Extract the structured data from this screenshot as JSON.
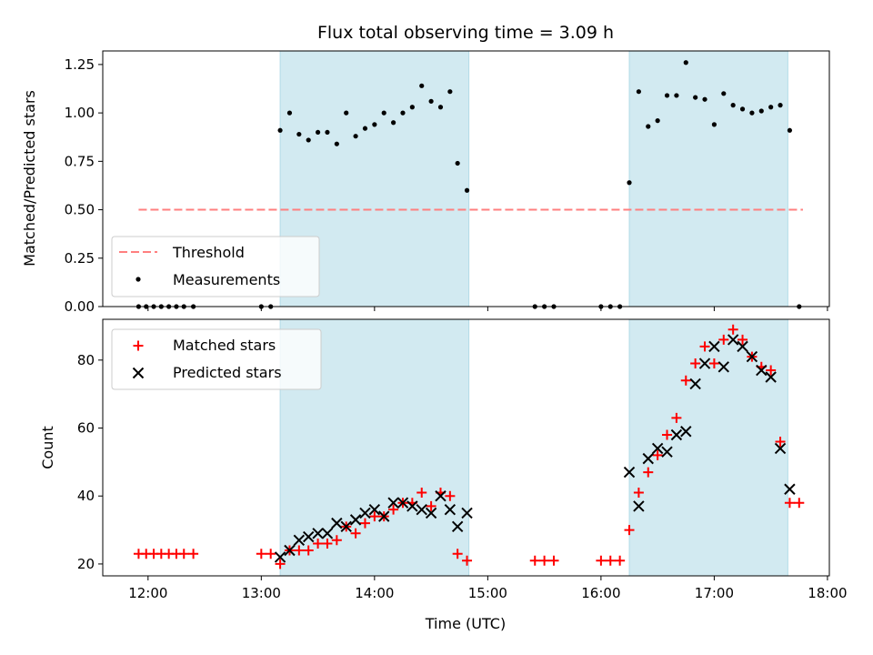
{
  "title": "Flux total observing time = 3.09 h",
  "shading": {
    "color": "#add8e6",
    "intervals": [
      [
        "13:10",
        "14:50"
      ],
      [
        "16:15",
        "17:39"
      ]
    ]
  },
  "chart_data": [
    {
      "type": "scatter",
      "panel": "top",
      "ylabel": "Matched/Predicted stars",
      "xlabel": "",
      "xlim": [
        "11:36",
        "18:01"
      ],
      "ylim": [
        0,
        1.32
      ],
      "yticks": [
        0.0,
        0.25,
        0.5,
        0.75,
        1.0,
        1.25
      ],
      "ytick_labels": [
        "0.00",
        "0.25",
        "0.50",
        "0.75",
        "1.00",
        "1.25"
      ],
      "legend_position": "lower-left",
      "threshold": {
        "name": "Threshold",
        "value": 0.5,
        "x_range": [
          "11:55",
          "17:47"
        ],
        "color": "#ff7f7f",
        "style": "dashed"
      },
      "series": [
        {
          "name": "Measurements",
          "marker": "dot",
          "color": "#000000",
          "points": [
            [
              "11:55",
              0
            ],
            [
              "11:59",
              0
            ],
            [
              "12:03",
              0
            ],
            [
              "12:07",
              0
            ],
            [
              "12:11",
              0
            ],
            [
              "12:15",
              0
            ],
            [
              "12:19",
              0
            ],
            [
              "12:24",
              0
            ],
            [
              "13:00",
              0
            ],
            [
              "13:05",
              0
            ],
            [
              "13:10",
              0.91
            ],
            [
              "13:15",
              1.0
            ],
            [
              "13:20",
              0.89
            ],
            [
              "13:25",
              0.86
            ],
            [
              "13:30",
              0.9
            ],
            [
              "13:35",
              0.9
            ],
            [
              "13:40",
              0.84
            ],
            [
              "13:45",
              1.0
            ],
            [
              "13:50",
              0.88
            ],
            [
              "13:55",
              0.92
            ],
            [
              "14:00",
              0.94
            ],
            [
              "14:05",
              1.0
            ],
            [
              "14:10",
              0.95
            ],
            [
              "14:15",
              1.0
            ],
            [
              "14:20",
              1.03
            ],
            [
              "14:25",
              1.14
            ],
            [
              "14:30",
              1.06
            ],
            [
              "14:35",
              1.03
            ],
            [
              "14:40",
              1.11
            ],
            [
              "14:44",
              0.74
            ],
            [
              "14:49",
              0.6
            ],
            [
              "15:25",
              0
            ],
            [
              "15:30",
              0
            ],
            [
              "15:35",
              0
            ],
            [
              "16:00",
              0
            ],
            [
              "16:05",
              0
            ],
            [
              "16:10",
              0
            ],
            [
              "16:15",
              0.64
            ],
            [
              "16:20",
              1.11
            ],
            [
              "16:25",
              0.93
            ],
            [
              "16:30",
              0.96
            ],
            [
              "16:35",
              1.09
            ],
            [
              "16:40",
              1.09
            ],
            [
              "16:45",
              1.26
            ],
            [
              "16:50",
              1.08
            ],
            [
              "16:55",
              1.07
            ],
            [
              "17:00",
              0.94
            ],
            [
              "17:05",
              1.1
            ],
            [
              "17:10",
              1.04
            ],
            [
              "17:15",
              1.02
            ],
            [
              "17:20",
              1.0
            ],
            [
              "17:25",
              1.01
            ],
            [
              "17:30",
              1.03
            ],
            [
              "17:35",
              1.04
            ],
            [
              "17:40",
              0.91
            ],
            [
              "17:45",
              0
            ]
          ]
        }
      ]
    },
    {
      "type": "scatter",
      "panel": "bottom",
      "ylabel": "Count",
      "xlabel": "Time (UTC)",
      "xlim": [
        "11:36",
        "18:01"
      ],
      "ylim": [
        16.5,
        92
      ],
      "yticks": [
        20,
        40,
        60,
        80
      ],
      "ytick_labels": [
        "20",
        "40",
        "60",
        "80"
      ],
      "xticks": [
        "12:00",
        "13:00",
        "14:00",
        "15:00",
        "16:00",
        "17:00",
        "18:00"
      ],
      "xtick_labels": [
        "12:00",
        "13:00",
        "14:00",
        "15:00",
        "16:00",
        "17:00",
        "18:00"
      ],
      "legend_position": "upper-left",
      "series": [
        {
          "name": "Matched stars",
          "marker": "plus",
          "color": "#ff0000",
          "points": [
            [
              "11:55",
              23
            ],
            [
              "11:59",
              23
            ],
            [
              "12:03",
              23
            ],
            [
              "12:07",
              23
            ],
            [
              "12:11",
              23
            ],
            [
              "12:15",
              23
            ],
            [
              "12:19",
              23
            ],
            [
              "12:24",
              23
            ],
            [
              "13:00",
              23
            ],
            [
              "13:05",
              23
            ],
            [
              "13:10",
              20
            ],
            [
              "13:15",
              24
            ],
            [
              "13:20",
              24
            ],
            [
              "13:25",
              24
            ],
            [
              "13:30",
              26
            ],
            [
              "13:35",
              26
            ],
            [
              "13:40",
              27
            ],
            [
              "13:45",
              31
            ],
            [
              "13:50",
              29
            ],
            [
              "13:55",
              32
            ],
            [
              "14:00",
              34
            ],
            [
              "14:05",
              34
            ],
            [
              "14:10",
              36
            ],
            [
              "14:15",
              38
            ],
            [
              "14:20",
              38
            ],
            [
              "14:25",
              41
            ],
            [
              "14:30",
              37
            ],
            [
              "14:35",
              41
            ],
            [
              "14:40",
              40
            ],
            [
              "14:44",
              23
            ],
            [
              "14:49",
              21
            ],
            [
              "15:25",
              21
            ],
            [
              "15:30",
              21
            ],
            [
              "15:35",
              21
            ],
            [
              "16:00",
              21
            ],
            [
              "16:05",
              21
            ],
            [
              "16:10",
              21
            ],
            [
              "16:15",
              30
            ],
            [
              "16:20",
              41
            ],
            [
              "16:25",
              47
            ],
            [
              "16:30",
              52
            ],
            [
              "16:35",
              58
            ],
            [
              "16:40",
              63
            ],
            [
              "16:45",
              74
            ],
            [
              "16:50",
              79
            ],
            [
              "16:55",
              84
            ],
            [
              "17:00",
              79
            ],
            [
              "17:05",
              86
            ],
            [
              "17:10",
              89
            ],
            [
              "17:15",
              86
            ],
            [
              "17:20",
              81
            ],
            [
              "17:25",
              78
            ],
            [
              "17:30",
              77
            ],
            [
              "17:35",
              56
            ],
            [
              "17:40",
              38
            ],
            [
              "17:45",
              38
            ]
          ]
        },
        {
          "name": "Predicted stars",
          "marker": "x",
          "color": "#000000",
          "points": [
            [
              "13:10",
              22
            ],
            [
              "13:15",
              24
            ],
            [
              "13:20",
              27
            ],
            [
              "13:25",
              28
            ],
            [
              "13:30",
              29
            ],
            [
              "13:35",
              29
            ],
            [
              "13:40",
              32
            ],
            [
              "13:45",
              31
            ],
            [
              "13:50",
              33
            ],
            [
              "13:55",
              35
            ],
            [
              "14:00",
              36
            ],
            [
              "14:05",
              34
            ],
            [
              "14:10",
              38
            ],
            [
              "14:15",
              38
            ],
            [
              "14:20",
              37
            ],
            [
              "14:25",
              36
            ],
            [
              "14:30",
              35
            ],
            [
              "14:35",
              40
            ],
            [
              "14:40",
              36
            ],
            [
              "14:44",
              31
            ],
            [
              "14:49",
              35
            ],
            [
              "16:15",
              47
            ],
            [
              "16:20",
              37
            ],
            [
              "16:25",
              51
            ],
            [
              "16:30",
              54
            ],
            [
              "16:35",
              53
            ],
            [
              "16:40",
              58
            ],
            [
              "16:45",
              59
            ],
            [
              "16:50",
              73
            ],
            [
              "16:55",
              79
            ],
            [
              "17:00",
              84
            ],
            [
              "17:05",
              78
            ],
            [
              "17:10",
              86
            ],
            [
              "17:15",
              84
            ],
            [
              "17:20",
              81
            ],
            [
              "17:25",
              77
            ],
            [
              "17:30",
              75
            ],
            [
              "17:35",
              54
            ],
            [
              "17:40",
              42
            ]
          ]
        }
      ]
    }
  ]
}
